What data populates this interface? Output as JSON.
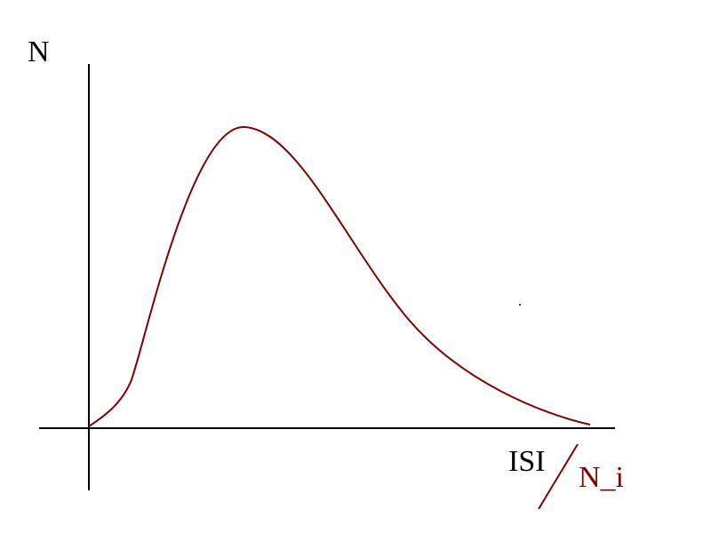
{
  "diagram": {
    "y_axis_label": "N",
    "x_axis_label": "ISI",
    "normalizer_label": "N_i",
    "colors": {
      "axes": "#000000",
      "curve": "#800000",
      "normalizer_label": "#800000",
      "background": "#ffffff"
    }
  }
}
